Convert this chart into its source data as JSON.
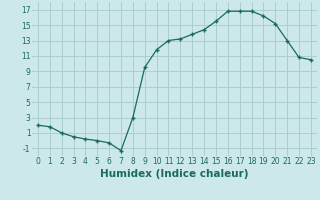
{
  "x": [
    0,
    1,
    2,
    3,
    4,
    5,
    6,
    7,
    8,
    9,
    10,
    11,
    12,
    13,
    14,
    15,
    16,
    17,
    18,
    19,
    20,
    21,
    22,
    23
  ],
  "y": [
    2.0,
    1.8,
    1.0,
    0.5,
    0.2,
    0.0,
    -0.3,
    -1.3,
    3.0,
    9.5,
    11.8,
    13.0,
    13.2,
    13.8,
    14.4,
    15.5,
    16.8,
    16.8,
    16.8,
    16.2,
    15.2,
    13.0,
    10.8,
    10.5
  ],
  "xlabel": "Humidex (Indice chaleur)",
  "xlim": [
    -0.5,
    23.5
  ],
  "ylim": [
    -2.0,
    18.0
  ],
  "yticks": [
    -1,
    1,
    3,
    5,
    7,
    9,
    11,
    13,
    15,
    17
  ],
  "xticks": [
    0,
    1,
    2,
    3,
    4,
    5,
    6,
    7,
    8,
    9,
    10,
    11,
    12,
    13,
    14,
    15,
    16,
    17,
    18,
    19,
    20,
    21,
    22,
    23
  ],
  "line_color": "#1a6b5a",
  "marker": "+",
  "bg_color": "#cce8e8",
  "grid_color": "#aacfcf",
  "label_color": "#1a6b5a",
  "tick_fontsize": 5.5,
  "xlabel_fontsize": 7.5
}
